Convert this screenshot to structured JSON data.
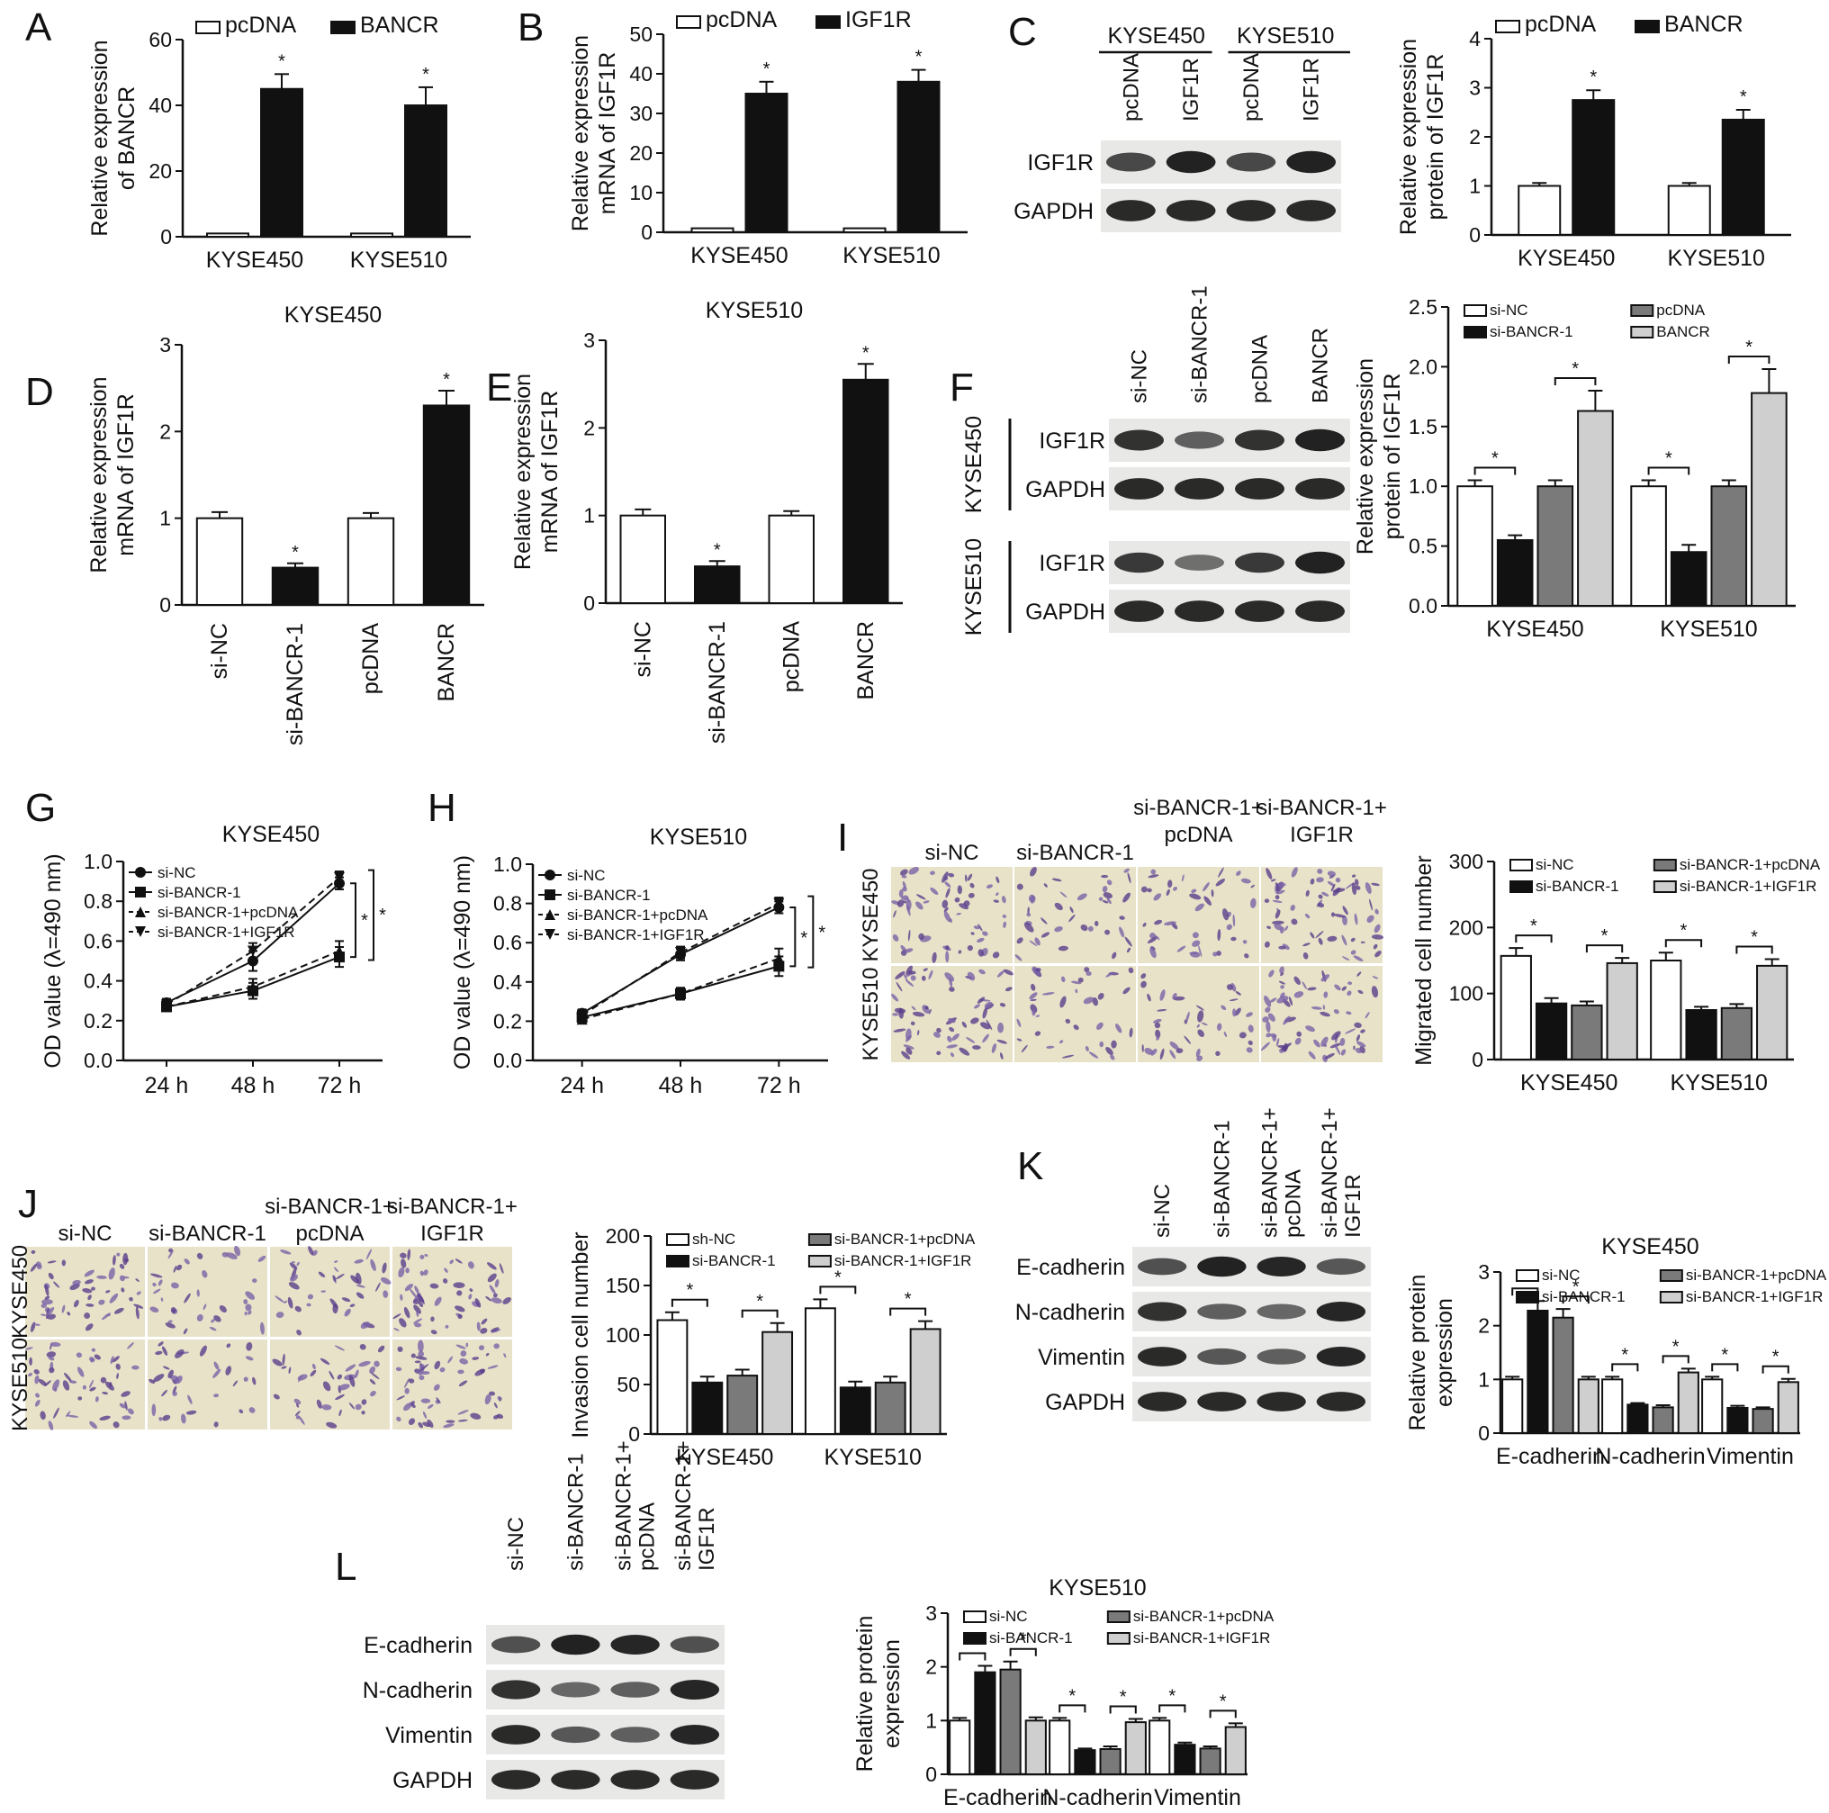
{
  "colors": {
    "white": "#ffffff",
    "black": "#111111",
    "gray": "#7a7a7a",
    "lightgray": "#cfcfcf"
  },
  "panel_labels": [
    "A",
    "B",
    "C",
    "D",
    "E",
    "F",
    "G",
    "H",
    "I",
    "J",
    "K",
    "L"
  ],
  "chart_data": [
    {
      "id": "A",
      "type": "bar",
      "ylabel": [
        "Relative expression",
        "of BANCR"
      ],
      "ylim": [
        0,
        60
      ],
      "yticks": [
        "0",
        "20",
        "40",
        "60"
      ],
      "categories": [
        "KYSE450",
        "KYSE510"
      ],
      "series": [
        {
          "name": "pcDNA",
          "color": "white",
          "values": [
            1,
            1
          ],
          "err": [
            0,
            0
          ]
        },
        {
          "name": "BANCR",
          "color": "black",
          "values": [
            45,
            40
          ],
          "err": [
            4.5,
            5.5
          ]
        }
      ],
      "stars": [
        {
          "cat": 0,
          "series": 1
        },
        {
          "cat": 1,
          "series": 1
        }
      ],
      "legend": "top"
    },
    {
      "id": "B",
      "type": "bar",
      "ylabel": [
        "Relative expression",
        "mRNA of IGF1R"
      ],
      "ylim": [
        0,
        50
      ],
      "yticks": [
        "0",
        "10",
        "20",
        "30",
        "40",
        "50"
      ],
      "categories": [
        "KYSE450",
        "KYSE510"
      ],
      "series": [
        {
          "name": "pcDNA",
          "color": "white",
          "values": [
            1,
            1
          ],
          "err": [
            0,
            0
          ]
        },
        {
          "name": "IGF1R",
          "color": "black",
          "values": [
            35,
            38
          ],
          "err": [
            3,
            3
          ]
        }
      ],
      "stars": [
        {
          "cat": 0,
          "series": 1
        },
        {
          "cat": 1,
          "series": 1
        }
      ],
      "legend": "top"
    },
    {
      "id": "C",
      "type": "bar",
      "ylabel": [
        "Relative expression",
        "protein of IGF1R"
      ],
      "ylim": [
        0,
        4
      ],
      "yticks": [
        "0",
        "1",
        "2",
        "3",
        "4"
      ],
      "categories": [
        "KYSE450",
        "KYSE510"
      ],
      "series": [
        {
          "name": "pcDNA",
          "color": "white",
          "values": [
            1,
            1
          ],
          "err": [
            0.06,
            0.06
          ]
        },
        {
          "name": "BANCR",
          "color": "black",
          "values": [
            2.75,
            2.35
          ],
          "err": [
            0.2,
            0.2
          ]
        }
      ],
      "stars": [
        {
          "cat": 0,
          "series": 1
        },
        {
          "cat": 1,
          "series": 1
        }
      ],
      "legend": "top"
    },
    {
      "id": "D",
      "type": "bar",
      "title": "KYSE450",
      "ylabel": [
        "Relative expression",
        "mRNA of IGF1R"
      ],
      "ylim": [
        0,
        3
      ],
      "yticks": [
        "0",
        "1",
        "2",
        "3"
      ],
      "categories": [
        "si-NC",
        "si-BANCR-1",
        "pcDNA",
        "BANCR"
      ],
      "rotate_cats": true,
      "bars": [
        {
          "value": 1,
          "err": 0.07,
          "color": "white",
          "star": false
        },
        {
          "value": 0.43,
          "err": 0.05,
          "color": "black",
          "star": true
        },
        {
          "value": 1,
          "err": 0.06,
          "color": "white",
          "star": false
        },
        {
          "value": 2.3,
          "err": 0.17,
          "color": "black",
          "star": true
        }
      ]
    },
    {
      "id": "E",
      "type": "bar",
      "title": "KYSE510",
      "ylabel": [
        "Relative expression",
        "mRNA of IGF1R"
      ],
      "ylim": [
        0,
        3
      ],
      "yticks": [
        "0",
        "1",
        "2",
        "3"
      ],
      "categories": [
        "si-NC",
        "si-BANCR-1",
        "pcDNA",
        "BANCR"
      ],
      "rotate_cats": true,
      "bars": [
        {
          "value": 1,
          "err": 0.07,
          "color": "white",
          "star": false
        },
        {
          "value": 0.42,
          "err": 0.06,
          "color": "black",
          "star": true
        },
        {
          "value": 1,
          "err": 0.05,
          "color": "white",
          "star": false
        },
        {
          "value": 2.55,
          "err": 0.18,
          "color": "black",
          "star": true
        }
      ]
    },
    {
      "id": "F",
      "type": "bar",
      "ylabel": [
        "Relative expression",
        "protein of IGF1R"
      ],
      "ylim": [
        0,
        2.5
      ],
      "yticks": [
        "0.0",
        "0.5",
        "1.0",
        "1.5",
        "2.0",
        "2.5"
      ],
      "categories": [
        "KYSE450",
        "KYSE510"
      ],
      "series": [
        {
          "name": "si-NC",
          "color": "white",
          "values": [
            1,
            1
          ],
          "err": [
            0.05,
            0.05
          ]
        },
        {
          "name": "si-BANCR-1",
          "color": "black",
          "values": [
            0.55,
            0.45
          ],
          "err": [
            0.04,
            0.06
          ]
        },
        {
          "name": "pcDNA",
          "color": "gray",
          "values": [
            1,
            1
          ],
          "err": [
            0.05,
            0.05
          ]
        },
        {
          "name": "BANCR",
          "color": "lightgray",
          "values": [
            1.63,
            1.78
          ],
          "err": [
            0.17,
            0.2
          ]
        }
      ],
      "brackets": [
        [
          0,
          0,
          1
        ],
        [
          0,
          2,
          3
        ],
        [
          1,
          0,
          1
        ],
        [
          1,
          2,
          3
        ]
      ],
      "legend": "grid2"
    },
    {
      "id": "G",
      "type": "line",
      "title": "KYSE450",
      "ylabel": [
        "OD value (λ=490 nm)"
      ],
      "ylim": [
        0,
        1.0
      ],
      "yticks": [
        "0.0",
        "0.2",
        "0.4",
        "0.6",
        "0.8",
        "1.0"
      ],
      "x": [
        "24 h",
        "48 h",
        "72 h"
      ],
      "series": [
        {
          "name": "si-NC",
          "marker": "circle",
          "dash": false,
          "values": [
            0.29,
            0.5,
            0.89
          ],
          "err": [
            0.02,
            0.05,
            0.03
          ]
        },
        {
          "name": "si-BANCR-1",
          "marker": "square",
          "dash": false,
          "values": [
            0.27,
            0.35,
            0.52
          ],
          "err": [
            0.02,
            0.04,
            0.05
          ]
        },
        {
          "name": "si-BANCR-1+pcDNA",
          "marker": "triangle",
          "dash": true,
          "values": [
            0.27,
            0.37,
            0.55
          ],
          "err": [
            0.02,
            0.04,
            0.05
          ]
        },
        {
          "name": "si-BANCR-1+IGF1R",
          "marker": "tri-down",
          "dash": true,
          "values": [
            0.28,
            0.55,
            0.92
          ],
          "err": [
            0.02,
            0.04,
            0.03
          ]
        }
      ]
    },
    {
      "id": "H",
      "type": "line",
      "title": "KYSE510",
      "ylabel": [
        "OD value (λ=490 nm)"
      ],
      "ylim": [
        0,
        1.0
      ],
      "yticks": [
        "0.0",
        "0.2",
        "0.4",
        "0.6",
        "0.8",
        "1.0"
      ],
      "x": [
        "24 h",
        "48 h",
        "72 h"
      ],
      "series": [
        {
          "name": "si-NC",
          "marker": "circle",
          "dash": false,
          "values": [
            0.24,
            0.54,
            0.78
          ],
          "err": [
            0.02,
            0.03,
            0.03
          ]
        },
        {
          "name": "si-BANCR-1",
          "marker": "square",
          "dash": false,
          "values": [
            0.22,
            0.34,
            0.48
          ],
          "err": [
            0.02,
            0.03,
            0.05
          ]
        },
        {
          "name": "si-BANCR-1+pcDNA",
          "marker": "triangle",
          "dash": true,
          "values": [
            0.21,
            0.34,
            0.52
          ],
          "err": [
            0.02,
            0.03,
            0.05
          ]
        },
        {
          "name": "si-BANCR-1+IGF1R",
          "marker": "tri-down",
          "dash": true,
          "values": [
            0.23,
            0.55,
            0.8
          ],
          "err": [
            0.02,
            0.03,
            0.03
          ]
        }
      ]
    },
    {
      "id": "I",
      "type": "bar",
      "ylabel": [
        "Migrated cell number"
      ],
      "ylim": [
        0,
        300
      ],
      "yticks": [
        "0",
        "100",
        "200",
        "300"
      ],
      "categories": [
        "KYSE450",
        "KYSE510"
      ],
      "series": [
        {
          "name": "si-NC",
          "color": "white",
          "values": [
            157,
            150
          ],
          "err": [
            12,
            12
          ]
        },
        {
          "name": "si-BANCR-1",
          "color": "black",
          "values": [
            85,
            75
          ],
          "err": [
            8,
            5
          ]
        },
        {
          "name": "si-BANCR-1+pcDNA",
          "color": "gray",
          "values": [
            82,
            78
          ],
          "err": [
            6,
            6
          ]
        },
        {
          "name": "si-BANCR-1+IGF1R",
          "color": "lightgray",
          "values": [
            146,
            142
          ],
          "err": [
            8,
            10
          ]
        }
      ],
      "brackets": [
        [
          0,
          0,
          1
        ],
        [
          0,
          2,
          3
        ],
        [
          1,
          0,
          1
        ],
        [
          1,
          2,
          3
        ]
      ],
      "legend": "grid2"
    },
    {
      "id": "J",
      "type": "bar",
      "ylabel": [
        "Invasion cell number"
      ],
      "ylim": [
        0,
        200
      ],
      "yticks": [
        "0",
        "50",
        "100",
        "150",
        "200"
      ],
      "categories": [
        "KYSE450",
        "KYSE510"
      ],
      "series": [
        {
          "name": "sh-NC",
          "color": "white",
          "values": [
            115,
            127
          ],
          "err": [
            8,
            9
          ]
        },
        {
          "name": "si-BANCR-1",
          "color": "black",
          "values": [
            52,
            47
          ],
          "err": [
            6,
            6
          ]
        },
        {
          "name": "si-BANCR-1+pcDNA",
          "color": "gray",
          "values": [
            59,
            52
          ],
          "err": [
            6,
            6
          ]
        },
        {
          "name": "si-BANCR-1+IGF1R",
          "color": "lightgray",
          "values": [
            103,
            106
          ],
          "err": [
            9,
            8
          ]
        }
      ],
      "brackets": [
        [
          0,
          0,
          1
        ],
        [
          0,
          2,
          3
        ],
        [
          1,
          0,
          1
        ],
        [
          1,
          2,
          3
        ]
      ],
      "legend": "grid2"
    },
    {
      "id": "K",
      "type": "bar",
      "title": "KYSE450",
      "ylabel": [
        "Relative protein",
        "expression"
      ],
      "ylim": [
        0,
        3
      ],
      "yticks": [
        "0",
        "1",
        "2",
        "3"
      ],
      "categories": [
        "E-cadherin",
        "N-cadherin",
        "Vimentin"
      ],
      "series": [
        {
          "name": "si-NC",
          "color": "white",
          "values": [
            1,
            1,
            1
          ],
          "err": [
            0.05,
            0.05,
            0.05
          ]
        },
        {
          "name": "si-BANCR-1",
          "color": "black",
          "values": [
            2.28,
            0.53,
            0.47
          ],
          "err": [
            0.18,
            0.03,
            0.04
          ]
        },
        {
          "name": "si-BANCR-1+pcDNA",
          "color": "gray",
          "values": [
            2.15,
            0.48,
            0.45
          ],
          "err": [
            0.16,
            0.04,
            0.03
          ]
        },
        {
          "name": "si-BANCR-1+IGF1R",
          "color": "lightgray",
          "values": [
            1,
            1.13,
            0.95
          ],
          "err": [
            0.05,
            0.07,
            0.06
          ]
        }
      ],
      "brackets": [
        [
          0,
          0,
          1
        ],
        [
          0,
          2,
          3
        ],
        [
          1,
          0,
          1
        ],
        [
          1,
          2,
          3
        ],
        [
          2,
          0,
          1
        ],
        [
          2,
          2,
          3
        ]
      ],
      "legend": "grid2"
    },
    {
      "id": "L",
      "type": "bar",
      "title": "KYSE510",
      "ylabel": [
        "Relative protein",
        "expression"
      ],
      "ylim": [
        0,
        3
      ],
      "yticks": [
        "0",
        "1",
        "2",
        "3"
      ],
      "categories": [
        "E-cadherin",
        "N-cadherin",
        "Vimentin"
      ],
      "series": [
        {
          "name": "si-NC",
          "color": "white",
          "values": [
            1,
            1,
            1
          ],
          "err": [
            0.05,
            0.05,
            0.05
          ]
        },
        {
          "name": "si-BANCR-1",
          "color": "black",
          "values": [
            1.9,
            0.45,
            0.55
          ],
          "err": [
            0.12,
            0.03,
            0.04
          ]
        },
        {
          "name": "si-BANCR-1+pcDNA",
          "color": "gray",
          "values": [
            1.95,
            0.47,
            0.48
          ],
          "err": [
            0.15,
            0.05,
            0.04
          ]
        },
        {
          "name": "si-BANCR-1+IGF1R",
          "color": "lightgray",
          "values": [
            1,
            0.97,
            0.88
          ],
          "err": [
            0.06,
            0.06,
            0.07
          ]
        }
      ],
      "brackets": [
        [
          0,
          0,
          1
        ],
        [
          0,
          2,
          3
        ],
        [
          1,
          0,
          1
        ],
        [
          1,
          2,
          3
        ],
        [
          2,
          0,
          1
        ],
        [
          2,
          2,
          3
        ]
      ],
      "legend": "grid2"
    }
  ],
  "blots": [
    {
      "id": "C",
      "groups": [
        "KYSE450",
        "KYSE510"
      ],
      "lanes": [
        "pcDNA",
        "IGF1R",
        "pcDNA",
        "IGF1R"
      ],
      "rows": [
        "IGF1R",
        "GAPDH"
      ],
      "intensity": [
        [
          0.7,
          0.95,
          0.7,
          0.95
        ],
        [
          0.9,
          0.9,
          0.9,
          0.9
        ]
      ]
    },
    {
      "id": "F",
      "lanes": [
        "si-NC",
        "si-BANCR-1",
        "pcDNA",
        "BANCR"
      ],
      "side_labels": [
        "KYSE450",
        "KYSE510"
      ],
      "rows": [
        "IGF1R",
        "GAPDH",
        "IGF1R",
        "GAPDH"
      ],
      "intensity": [
        [
          0.85,
          0.55,
          0.85,
          0.95
        ],
        [
          0.9,
          0.9,
          0.9,
          0.9
        ],
        [
          0.8,
          0.45,
          0.8,
          0.95
        ],
        [
          0.9,
          0.9,
          0.9,
          0.9
        ]
      ]
    },
    {
      "id": "K",
      "lanes": [
        "si-NC",
        "si-BANCR-1",
        "si-BANCR-1+ pcDNA",
        "si-BANCR-1+ IGF1R"
      ],
      "rows": [
        "E-cadherin",
        "N-cadherin",
        "Vimentin",
        "GAPDH"
      ],
      "intensity": [
        [
          0.65,
          0.95,
          0.92,
          0.6
        ],
        [
          0.85,
          0.55,
          0.5,
          0.92
        ],
        [
          0.9,
          0.6,
          0.55,
          0.92
        ],
        [
          0.9,
          0.9,
          0.9,
          0.9
        ]
      ]
    },
    {
      "id": "L",
      "lanes": [
        "si-NC",
        "si-BANCR-1",
        "si-BANCR-1+ pcDNA",
        "si-BANCR-1+ IGF1R"
      ],
      "rows": [
        "E-cadherin",
        "N-cadherin",
        "Vimentin",
        "GAPDH"
      ],
      "intensity": [
        [
          0.65,
          0.95,
          0.92,
          0.65
        ],
        [
          0.85,
          0.5,
          0.55,
          0.92
        ],
        [
          0.9,
          0.6,
          0.55,
          0.92
        ],
        [
          0.9,
          0.9,
          0.9,
          0.9
        ]
      ]
    }
  ],
  "micrographs": [
    {
      "id": "I",
      "cols": [
        "si-NC",
        "si-BANCR-1",
        "si-BANCR-1+ pcDNA",
        "si-BANCR-1+ IGF1R"
      ],
      "rows": [
        "KYSE450",
        "KYSE510"
      ],
      "density": [
        [
          0.55,
          0.35,
          0.38,
          0.6
        ],
        [
          0.55,
          0.35,
          0.36,
          0.6
        ]
      ]
    },
    {
      "id": "J",
      "cols": [
        "si-NC",
        "si-BANCR-1",
        "si-BANCR-1+ pcDNA",
        "si-BANCR-1+ IGF1R"
      ],
      "rows": [
        "KYSE450",
        "KYSE510"
      ],
      "density": [
        [
          0.45,
          0.32,
          0.35,
          0.5
        ],
        [
          0.45,
          0.3,
          0.35,
          0.5
        ]
      ]
    }
  ],
  "star_symbol": "*"
}
